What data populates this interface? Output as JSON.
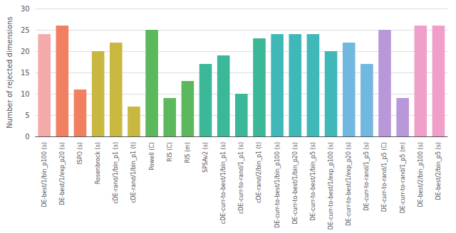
{
  "chart_data": {
    "type": "bar",
    "ylabel": "Number of rejected dimensions",
    "categories": [
      "DE-best/1/bin_p100 (s)",
      "DE-best/1/exp_p20 (s)",
      "ISPO (s)",
      "Rosenbrock (s)",
      "cDE-rand/1/bin_p1 (s)",
      "cDE-rand/1/bin_p1 (t)",
      "Powell (C)",
      "RIS (C)",
      "RIS (m)",
      "SPSAv2 (s)",
      "cDE-curr-to-best/1/bin_p1 (s)",
      "cDE-curr-to-rand/1_p1 (s)",
      "cDE-rand/2/bin_p1 (t)",
      "DE-curr-to-best/1/bin_p100 (s)",
      "DE-curr-to-best/1/bin_p20 (s)",
      "DE-curr-to-best/1/bin_p5 (s)",
      "DE-curr-to-best/1/exp_p100 (s)",
      "DE-curr-to-best/1/exp_p20 (s)",
      "DE-curr-to-rand/1_p5 (s)",
      "DE-curr-to-rand/1_p5 (C)",
      "DE-curr-to-rand/1_p5 (m)",
      "DE-best/2/bin_p100 (s)",
      "DE-best/2/bin_p5 (s)"
    ],
    "values": [
      24,
      26,
      11,
      20,
      22,
      7,
      25,
      9,
      13,
      17,
      19,
      10,
      23,
      24,
      24,
      24,
      20,
      22,
      17,
      25,
      9,
      26,
      26
    ],
    "colors": [
      "#f5aaaa",
      "#f08060",
      "#f08060",
      "#c8b840",
      "#c8b840",
      "#c8b840",
      "#5cb85c",
      "#5cb85c",
      "#5cb85c",
      "#3ab898",
      "#3ab898",
      "#3ab898",
      "#3ab898",
      "#40b8b8",
      "#40b8b8",
      "#40b8b8",
      "#40b8b8",
      "#70b8e0",
      "#70b8e0",
      "#b898d8",
      "#b898d8",
      "#f0a0c8",
      "#f0a0c8"
    ],
    "ylim": [
      0,
      30
    ],
    "yticks": [
      0,
      5,
      10,
      15,
      20,
      25,
      30
    ],
    "grid": true
  }
}
